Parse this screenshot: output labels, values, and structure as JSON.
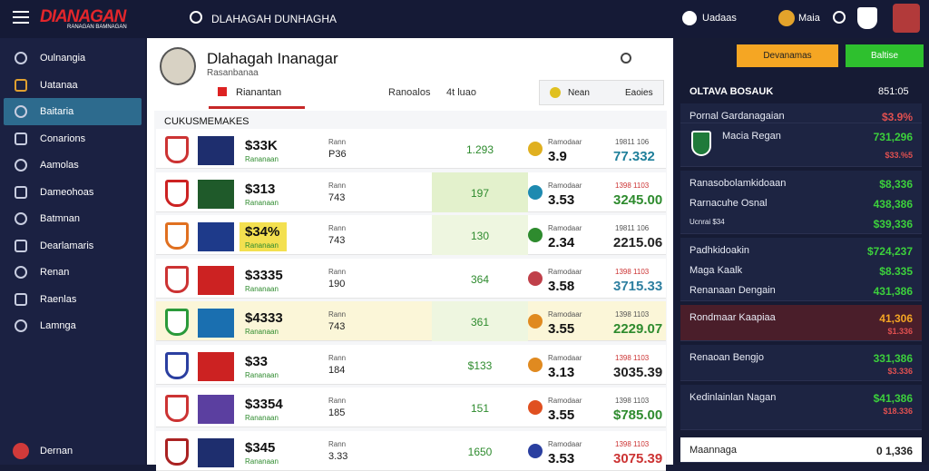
{
  "header": {
    "logo": "DIANAGAN",
    "logo_sub": "RANAGAN BAMNAGAN",
    "title": "DLAHAGAH DUNHAGHA",
    "items": [
      "Uadaas",
      "Maia"
    ]
  },
  "sidebar": {
    "items": [
      "Oulnangia",
      "Uatanaa",
      "Baitaria",
      "Conarions",
      "Aamolas",
      "Dameohoas",
      "Batmnan",
      "Dearlamaris",
      "Renan",
      "Raenlas",
      "Lamnga"
    ],
    "footer": "Dernan"
  },
  "main": {
    "title": "Dlahagah Inanagar",
    "subtitle": "Rasanbanaa",
    "tabs": [
      "Rianantan",
      "Ranoalos",
      "4t luao"
    ],
    "filters": [
      "Nean",
      "Eaoies"
    ],
    "section": "CUKUSMEMAKES",
    "rows": [
      [
        "$33K",
        "Rananaan",
        "Rann",
        "P36",
        "1.293",
        "Ramodaar",
        "3.9",
        "19811 106",
        "77.332"
      ],
      [
        "$313",
        "Rananaan",
        "Rann",
        "743",
        "197",
        "Ramodaar",
        "3.53",
        "1398 1103",
        "3245.00"
      ],
      [
        "$34%",
        "Rananaan",
        "Rann",
        "743",
        "130",
        "Ramodaar",
        "2.34",
        "19811 106",
        "2215.06"
      ],
      [
        "$3335",
        "Rananaan",
        "Rann",
        "190",
        "364",
        "Ramodaar",
        "3.58",
        "1398 1103",
        "3715.33"
      ],
      [
        "$4333",
        "Rananaan",
        "Rann",
        "743",
        "361",
        "Ramodaar",
        "3.55",
        "1398 1103",
        "2229.07"
      ],
      [
        "$33",
        "Rananaan",
        "Rann",
        "184",
        "$133",
        "Ramodaar",
        "3.13",
        "1398 1103",
        "3035.39"
      ],
      [
        "$3354",
        "Rananaan",
        "Rann",
        "185",
        "151",
        "Ramodaar",
        "3.55",
        "1398 1103",
        "$785.00"
      ],
      [
        "$345",
        "Rananaan",
        "Rann",
        "3.33",
        "1650",
        "Ramodaar",
        "3.53",
        "1398 1103",
        "3075.39"
      ]
    ]
  },
  "right": {
    "buttons": [
      "Devanamas",
      "Baltise"
    ],
    "title": "OLTAVA BOSAUK",
    "title_value": "851:05",
    "groups": [
      [
        [
          "Pornal Gardanagaian",
          "$3.9%"
        ]
      ],
      [
        [
          "Macia Regan",
          "731,296"
        ],
        [
          "",
          "$33.%5"
        ]
      ],
      [
        [
          "Ranasobolamkidoaan",
          "$8,336"
        ],
        [
          "Rarnacuhe Osnal",
          "438,386"
        ],
        [
          "Ucnrai $34",
          "$39,336"
        ]
      ],
      [
        [
          "Padhkidoakin",
          "$724,237"
        ],
        [
          "Maga Kaalk",
          "$8.335"
        ],
        [
          "Renanaan Dengain",
          "431,386"
        ]
      ],
      [
        [
          "Rondmaar Kaapiaa",
          "41,306"
        ],
        [
          "",
          "$1.336"
        ]
      ],
      [
        [
          "Renaoan Bengjo",
          "331,386"
        ],
        [
          "",
          "$3.336"
        ]
      ],
      [
        [
          "Kedinlainlan Nagan",
          "$41,386"
        ],
        [
          "",
          "$18.336"
        ]
      ],
      [
        [
          "Maannaga",
          "0 1,336"
        ]
      ]
    ]
  }
}
